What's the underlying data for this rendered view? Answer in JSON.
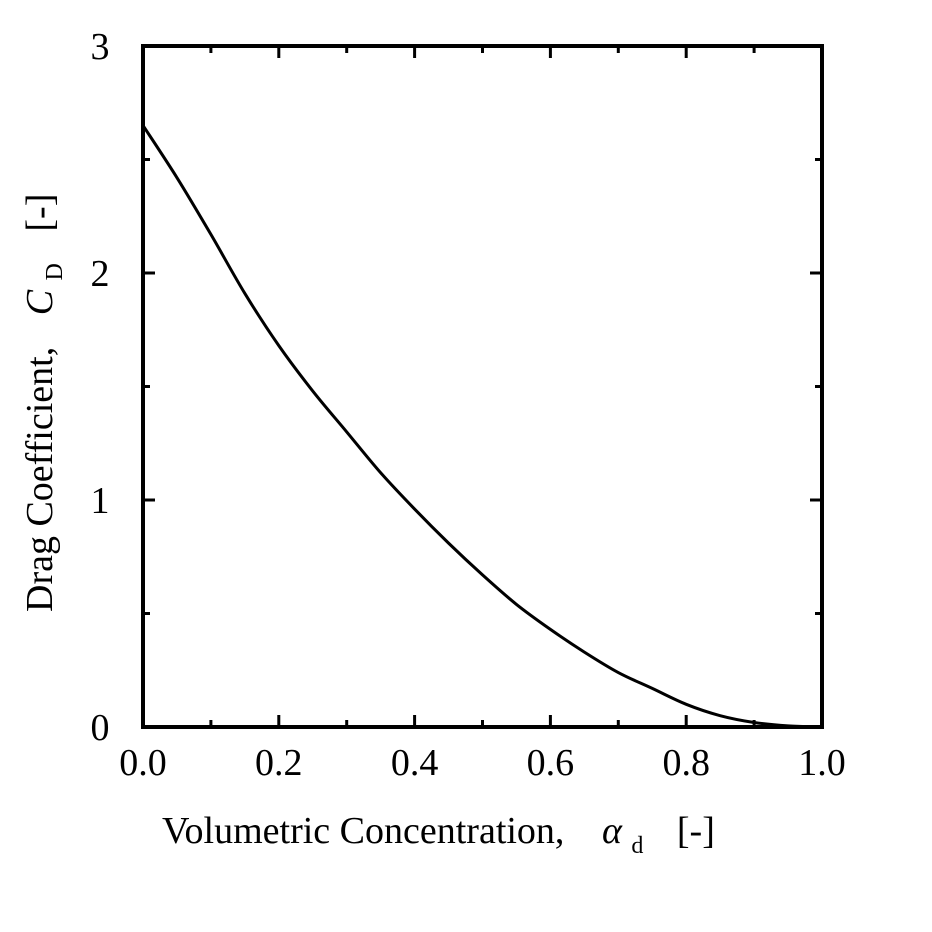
{
  "chart_data": {
    "type": "line",
    "title": "",
    "xlabel": "Volumetric Concentration,",
    "xlabel_symbol": "α",
    "xlabel_subscript": "d",
    "xlabel_unit": "[-]",
    "ylabel": "Drag Coefficient,",
    "ylabel_symbol": "C",
    "ylabel_subscript": "D",
    "ylabel_unit": "[-]",
    "xlim": [
      0.0,
      1.0
    ],
    "ylim": [
      0,
      3
    ],
    "x_ticks": [
      "0.0",
      "0.2",
      "0.4",
      "0.6",
      "0.8",
      "1.0"
    ],
    "y_ticks": [
      "0",
      "1",
      "2",
      "3"
    ],
    "x_minor_step": 0.1,
    "y_minor_step": 0.5,
    "grid": false,
    "legend": null,
    "series": [
      {
        "name": "C_D",
        "color": "#000000",
        "x": [
          0.0,
          0.05,
          0.1,
          0.15,
          0.2,
          0.25,
          0.3,
          0.35,
          0.4,
          0.45,
          0.5,
          0.55,
          0.6,
          0.65,
          0.7,
          0.75,
          0.8,
          0.85,
          0.9,
          0.95,
          1.0
        ],
        "y": [
          2.65,
          2.42,
          2.17,
          1.91,
          1.68,
          1.48,
          1.3,
          1.12,
          0.96,
          0.81,
          0.67,
          0.54,
          0.43,
          0.33,
          0.24,
          0.17,
          0.1,
          0.05,
          0.02,
          0.005,
          0.0
        ]
      }
    ]
  }
}
